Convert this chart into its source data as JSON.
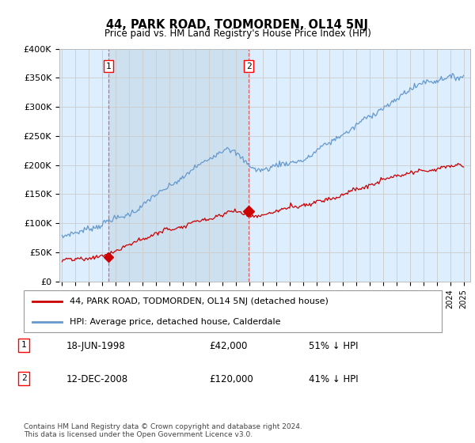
{
  "title": "44, PARK ROAD, TODMORDEN, OL14 5NJ",
  "subtitle": "Price paid vs. HM Land Registry's House Price Index (HPI)",
  "ylim": [
    0,
    400000
  ],
  "yticks": [
    0,
    50000,
    100000,
    150000,
    200000,
    250000,
    300000,
    350000,
    400000
  ],
  "ytick_labels": [
    "£0",
    "£50K",
    "£100K",
    "£150K",
    "£200K",
    "£250K",
    "£300K",
    "£350K",
    "£400K"
  ],
  "xlim_start": 1994.8,
  "xlim_end": 2025.5,
  "sale1_date": 1998.46,
  "sale1_price": 42000,
  "sale2_date": 2008.95,
  "sale2_price": 120000,
  "red_line_color": "#cc0000",
  "blue_line_color": "#6699cc",
  "sale_marker_color": "#cc0000",
  "dashed_line_color": "#dd6666",
  "grid_color": "#cccccc",
  "bg_color": "#ddeeff",
  "shade_color": "#cce0f0",
  "legend_line1": "44, PARK ROAD, TODMORDEN, OL14 5NJ (detached house)",
  "legend_line2": "HPI: Average price, detached house, Calderdale",
  "footnote": "Contains HM Land Registry data © Crown copyright and database right 2024.\nThis data is licensed under the Open Government Licence v3.0.",
  "table_row1": [
    "1",
    "18-JUN-1998",
    "£42,000",
    "51% ↓ HPI"
  ],
  "table_row2": [
    "2",
    "12-DEC-2008",
    "£120,000",
    "41% ↓ HPI"
  ]
}
